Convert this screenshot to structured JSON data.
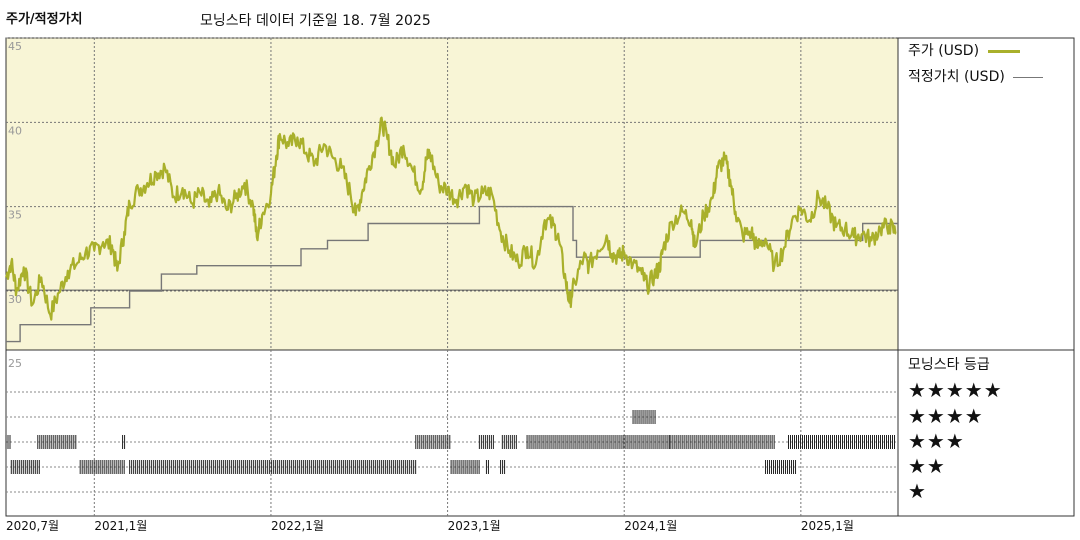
{
  "header": {
    "title": "주가/적정가치",
    "date_text": "모닝스타 데이터 기준일 18. 7월 2025"
  },
  "legend": {
    "price_label": "주가 (USD)",
    "fair_label": "적정가치 (USD)"
  },
  "rating": {
    "title": "모닝스타 등급",
    "stars": [
      "★★★★★",
      "★★★★",
      "★★★",
      "★★",
      "★"
    ]
  },
  "colors": {
    "price": "#a9b02b",
    "fair": "#777777",
    "plot_bg": "#f8f5d6",
    "bar": "#222222"
  },
  "chart_data": {
    "type": "line",
    "x_ticks": [
      "2020,7월",
      "2021,1월",
      "2022,1월",
      "2023,1월",
      "2024,1월",
      "2025,1월"
    ],
    "x_tick_t": [
      2020.5,
      2021.0,
      2022.0,
      2023.0,
      2024.0,
      2025.0
    ],
    "y_ticks": [
      "45",
      "40",
      "35",
      "30"
    ],
    "y_tick_values": [
      45,
      40,
      35,
      30
    ],
    "lower_y_tick": "25",
    "ylim": [
      26.5,
      45
    ],
    "xlim": [
      2020.5,
      2025.55
    ],
    "series": [
      {
        "name": "주가 (USD)",
        "points": [
          [
            2020.5,
            30.8
          ],
          [
            2020.53,
            31.7
          ],
          [
            2020.56,
            30.0
          ],
          [
            2020.6,
            31.4
          ],
          [
            2020.65,
            29.2
          ],
          [
            2020.7,
            30.8
          ],
          [
            2020.75,
            28.6
          ],
          [
            2020.8,
            29.9
          ],
          [
            2020.85,
            31.2
          ],
          [
            2020.9,
            31.6
          ],
          [
            2020.95,
            32.3
          ],
          [
            2021.0,
            32.4
          ],
          [
            2021.05,
            32.9
          ],
          [
            2021.1,
            32.7
          ],
          [
            2021.13,
            31.2
          ],
          [
            2021.17,
            33.5
          ],
          [
            2021.2,
            35.2
          ],
          [
            2021.25,
            36.0
          ],
          [
            2021.3,
            36.4
          ],
          [
            2021.35,
            37.0
          ],
          [
            2021.4,
            37.3
          ],
          [
            2021.45,
            35.6
          ],
          [
            2021.5,
            36.1
          ],
          [
            2021.55,
            35.2
          ],
          [
            2021.6,
            35.8
          ],
          [
            2021.65,
            35.0
          ],
          [
            2021.7,
            35.9
          ],
          [
            2021.75,
            34.8
          ],
          [
            2021.8,
            35.5
          ],
          [
            2021.85,
            36.4
          ],
          [
            2021.9,
            35.0
          ],
          [
            2021.92,
            33.2
          ],
          [
            2021.95,
            34.5
          ],
          [
            2022.0,
            35.8
          ],
          [
            2022.03,
            38.0
          ],
          [
            2022.05,
            39.3
          ],
          [
            2022.1,
            38.6
          ],
          [
            2022.15,
            39.1
          ],
          [
            2022.2,
            38.2
          ],
          [
            2022.25,
            37.6
          ],
          [
            2022.3,
            38.7
          ],
          [
            2022.35,
            37.9
          ],
          [
            2022.4,
            37.3
          ],
          [
            2022.45,
            35.8
          ],
          [
            2022.48,
            34.5
          ],
          [
            2022.52,
            36.0
          ],
          [
            2022.55,
            37.2
          ],
          [
            2022.6,
            38.9
          ],
          [
            2022.63,
            40.0
          ],
          [
            2022.66,
            39.0
          ],
          [
            2022.7,
            37.4
          ],
          [
            2022.75,
            38.6
          ],
          [
            2022.8,
            37.2
          ],
          [
            2022.85,
            36.0
          ],
          [
            2022.88,
            37.8
          ],
          [
            2022.9,
            38.2
          ],
          [
            2022.95,
            36.3
          ],
          [
            2023.0,
            36.0
          ],
          [
            2023.05,
            35.4
          ],
          [
            2023.1,
            36.3
          ],
          [
            2023.15,
            35.4
          ],
          [
            2023.2,
            35.8
          ],
          [
            2023.25,
            35.8
          ],
          [
            2023.3,
            33.5
          ],
          [
            2023.35,
            32.4
          ],
          [
            2023.4,
            31.7
          ],
          [
            2023.45,
            32.6
          ],
          [
            2023.5,
            31.6
          ],
          [
            2023.55,
            34.2
          ],
          [
            2023.6,
            33.9
          ],
          [
            2023.63,
            33.0
          ],
          [
            2023.67,
            30.5
          ],
          [
            2023.69,
            29.3
          ],
          [
            2023.72,
            30.5
          ],
          [
            2023.77,
            32.0
          ],
          [
            2023.8,
            31.5
          ],
          [
            2023.85,
            32.4
          ],
          [
            2023.9,
            33.3
          ],
          [
            2023.93,
            32.2
          ],
          [
            2023.97,
            32.0
          ],
          [
            2024.0,
            32.3
          ],
          [
            2024.05,
            31.6
          ],
          [
            2024.1,
            31.0
          ],
          [
            2024.13,
            30.3
          ],
          [
            2024.17,
            30.9
          ],
          [
            2024.2,
            31.4
          ],
          [
            2024.22,
            32.5
          ],
          [
            2024.27,
            34.1
          ],
          [
            2024.33,
            34.7
          ],
          [
            2024.38,
            34.2
          ],
          [
            2024.4,
            32.6
          ],
          [
            2024.45,
            34.5
          ],
          [
            2024.5,
            35.5
          ],
          [
            2024.53,
            37.3
          ],
          [
            2024.57,
            37.8
          ],
          [
            2024.6,
            36.6
          ],
          [
            2024.63,
            34.7
          ],
          [
            2024.67,
            33.3
          ],
          [
            2024.72,
            33.5
          ],
          [
            2024.75,
            32.6
          ],
          [
            2024.8,
            33.1
          ],
          [
            2024.85,
            31.5
          ],
          [
            2024.9,
            32.4
          ],
          [
            2024.95,
            34.2
          ],
          [
            2025.0,
            34.9
          ],
          [
            2025.05,
            34.2
          ],
          [
            2025.1,
            35.6
          ],
          [
            2025.15,
            34.9
          ],
          [
            2025.2,
            33.8
          ],
          [
            2025.25,
            33.7
          ],
          [
            2025.3,
            33.2
          ],
          [
            2025.35,
            33.4
          ],
          [
            2025.4,
            33.0
          ],
          [
            2025.45,
            33.7
          ],
          [
            2025.5,
            33.9
          ],
          [
            2025.54,
            33.4
          ]
        ]
      },
      {
        "name": "적정가치 (USD)",
        "points": [
          [
            2020.5,
            27.0
          ],
          [
            2020.58,
            27.0
          ],
          [
            2020.58,
            28.0
          ],
          [
            2020.98,
            28.0
          ],
          [
            2020.98,
            29.0
          ],
          [
            2021.2,
            29.0
          ],
          [
            2021.2,
            30.0
          ],
          [
            2021.38,
            30.0
          ],
          [
            2021.38,
            31.0
          ],
          [
            2021.58,
            31.0
          ],
          [
            2021.58,
            31.5
          ],
          [
            2022.17,
            31.5
          ],
          [
            2022.17,
            32.5
          ],
          [
            2022.32,
            32.5
          ],
          [
            2022.32,
            33.0
          ],
          [
            2022.55,
            33.0
          ],
          [
            2022.55,
            34.0
          ],
          [
            2023.18,
            34.0
          ],
          [
            2023.18,
            35.0
          ],
          [
            2023.71,
            35.0
          ],
          [
            2023.71,
            33.0
          ],
          [
            2023.73,
            33.0
          ],
          [
            2023.73,
            32.0
          ],
          [
            2024.43,
            32.0
          ],
          [
            2024.43,
            33.0
          ],
          [
            2025.35,
            33.0
          ],
          [
            2025.35,
            34.0
          ],
          [
            2025.55,
            34.0
          ]
        ]
      }
    ],
    "rating_history": {
      "levels": [
        5,
        4,
        3,
        2,
        1
      ],
      "segments": [
        {
          "level": 3,
          "start": 2020.5,
          "end": 2020.53
        },
        {
          "level": 3,
          "start": 2020.68,
          "end": 2020.9
        },
        {
          "level": 3,
          "start": 2021.16,
          "end": 2021.18
        },
        {
          "level": 3,
          "start": 2022.82,
          "end": 2023.02
        },
        {
          "level": 3,
          "start": 2023.18,
          "end": 2023.27
        },
        {
          "level": 3,
          "start": 2023.31,
          "end": 2023.4
        },
        {
          "level": 3,
          "start": 2023.45,
          "end": 2024.26
        },
        {
          "level": 3,
          "start": 2024.26,
          "end": 2024.85
        },
        {
          "level": 3,
          "start": 2024.93,
          "end": 2025.54
        },
        {
          "level": 4,
          "start": 2024.05,
          "end": 2024.18
        },
        {
          "level": 2,
          "start": 2020.53,
          "end": 2020.69
        },
        {
          "level": 2,
          "start": 2020.92,
          "end": 2021.17
        },
        {
          "level": 2,
          "start": 2021.2,
          "end": 2022.83
        },
        {
          "level": 2,
          "start": 2023.02,
          "end": 2023.18
        },
        {
          "level": 2,
          "start": 2023.22,
          "end": 2023.24
        },
        {
          "level": 2,
          "start": 2023.3,
          "end": 2023.33
        },
        {
          "level": 2,
          "start": 2024.8,
          "end": 2024.98
        }
      ]
    }
  }
}
